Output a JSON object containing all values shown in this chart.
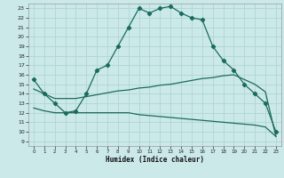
{
  "background_color": "#cce9e9",
  "grid_color": "#b0d4d4",
  "line_color": "#1a6b5e",
  "marker": "D",
  "marker_size": 2.2,
  "line_width": 0.9,
  "xlabel": "Humidex (Indice chaleur)",
  "xlim": [
    -0.5,
    23.5
  ],
  "ylim": [
    8.5,
    23.5
  ],
  "xticks": [
    0,
    1,
    2,
    3,
    4,
    5,
    6,
    7,
    8,
    9,
    10,
    11,
    12,
    13,
    14,
    15,
    16,
    17,
    18,
    19,
    20,
    21,
    22,
    23
  ],
  "yticks": [
    9,
    10,
    11,
    12,
    13,
    14,
    15,
    16,
    17,
    18,
    19,
    20,
    21,
    22,
    23
  ],
  "curve1_x": [
    0,
    1,
    2,
    3,
    4,
    5,
    6,
    7,
    8,
    9,
    10,
    11,
    12,
    13,
    14,
    15,
    16,
    17,
    18,
    19,
    20,
    21,
    22,
    23
  ],
  "curve1_y": [
    15.5,
    14.0,
    13.0,
    12.0,
    12.2,
    14.0,
    16.5,
    17.0,
    19.0,
    21.0,
    23.0,
    22.5,
    23.0,
    23.2,
    22.5,
    22.0,
    21.8,
    19.0,
    17.5,
    16.5,
    15.0,
    14.0,
    13.0,
    10.0
  ],
  "curve2_x": [
    0,
    1,
    2,
    3,
    4,
    5,
    6,
    7,
    8,
    9,
    10,
    11,
    12,
    13,
    14,
    15,
    16,
    17,
    18,
    19,
    20,
    21,
    22,
    23
  ],
  "curve2_y": [
    14.5,
    14.0,
    13.5,
    13.5,
    13.5,
    13.7,
    13.9,
    14.1,
    14.3,
    14.4,
    14.6,
    14.7,
    14.9,
    15.0,
    15.2,
    15.4,
    15.6,
    15.7,
    15.9,
    16.0,
    15.5,
    15.0,
    14.2,
    9.5
  ],
  "curve3_x": [
    0,
    1,
    2,
    3,
    4,
    5,
    6,
    7,
    8,
    9,
    10,
    11,
    12,
    13,
    14,
    15,
    16,
    17,
    18,
    19,
    20,
    21,
    22,
    23
  ],
  "curve3_y": [
    12.5,
    12.2,
    12.0,
    12.0,
    12.0,
    12.0,
    12.0,
    12.0,
    12.0,
    12.0,
    11.8,
    11.7,
    11.6,
    11.5,
    11.4,
    11.3,
    11.2,
    11.1,
    11.0,
    10.9,
    10.8,
    10.7,
    10.5,
    9.5
  ]
}
